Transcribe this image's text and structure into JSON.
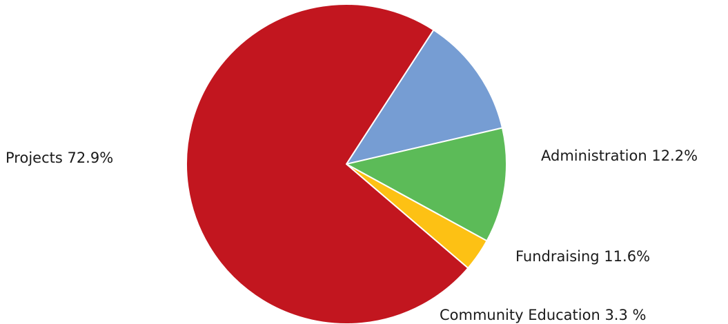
{
  "chart_data": {
    "type": "pie",
    "title": "",
    "start_angle_deg": 57,
    "direction": "clockwise",
    "slices": [
      {
        "label": "Administration",
        "display": "Administration 12.2%",
        "value": 12.2,
        "color": "#769dd3"
      },
      {
        "label": "Fundraising",
        "display": "Fundraising 11.6%",
        "value": 11.6,
        "color": "#5cbb58"
      },
      {
        "label": "Community Education",
        "display": "Community Education 3.3 %",
        "value": 3.3,
        "color": "#fdc114"
      },
      {
        "label": "Projects",
        "display": "Projects 72.9%",
        "value": 72.9,
        "color": "#c2161f"
      }
    ]
  }
}
